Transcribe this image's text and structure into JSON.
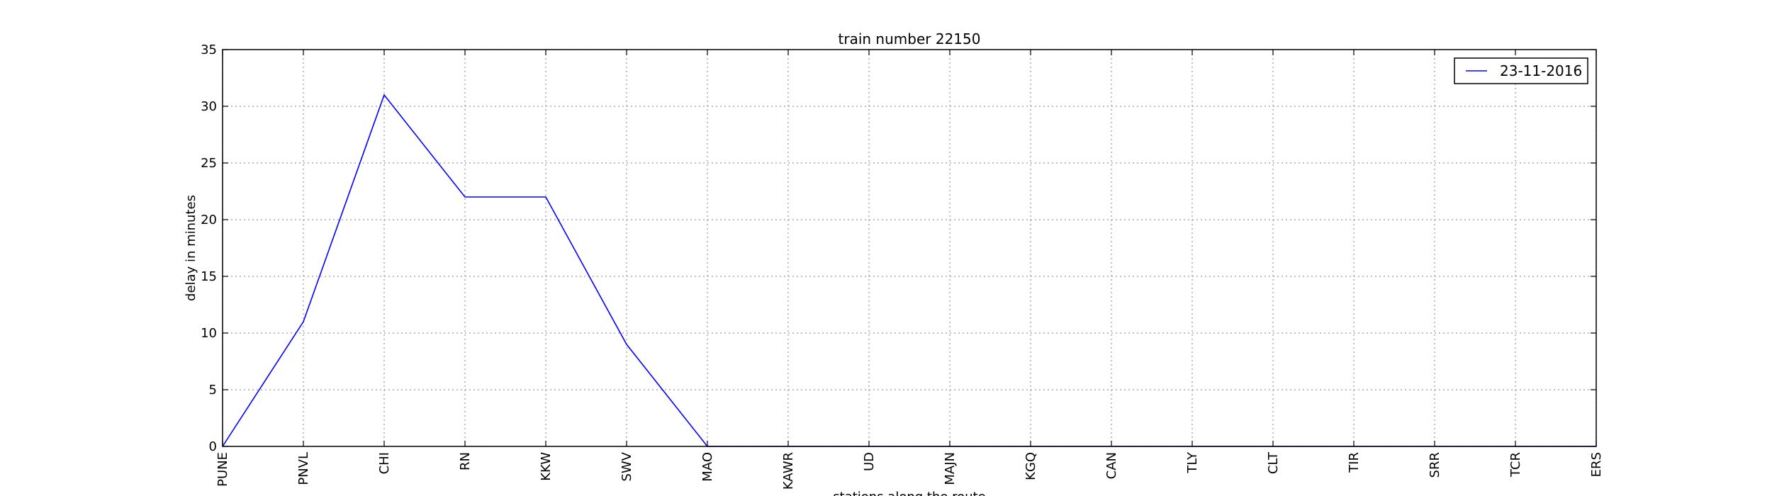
{
  "chart_data": {
    "type": "line",
    "title": "train number 22150",
    "xlabel": "stations along the route",
    "ylabel": "delay in minutes",
    "categories": [
      "PUNE",
      "PNVL",
      "CHI",
      "RN",
      "KKW",
      "SWV",
      "MAO",
      "KAWR",
      "UD",
      "MAJN",
      "KGQ",
      "CAN",
      "TLY",
      "CLT",
      "TIR",
      "SRR",
      "TCR",
      "ERS"
    ],
    "series": [
      {
        "name": "23-11-2016",
        "color": "#0000ff",
        "values": [
          0,
          11,
          31,
          22,
          22,
          9,
          0,
          0,
          0,
          0,
          0,
          0,
          0,
          0,
          0,
          0,
          0,
          0
        ]
      }
    ],
    "ylim": [
      0,
      35
    ],
    "yticks": [
      0,
      5,
      10,
      15,
      20,
      25,
      30,
      35
    ],
    "grid": true,
    "legend_position": "top-right"
  }
}
